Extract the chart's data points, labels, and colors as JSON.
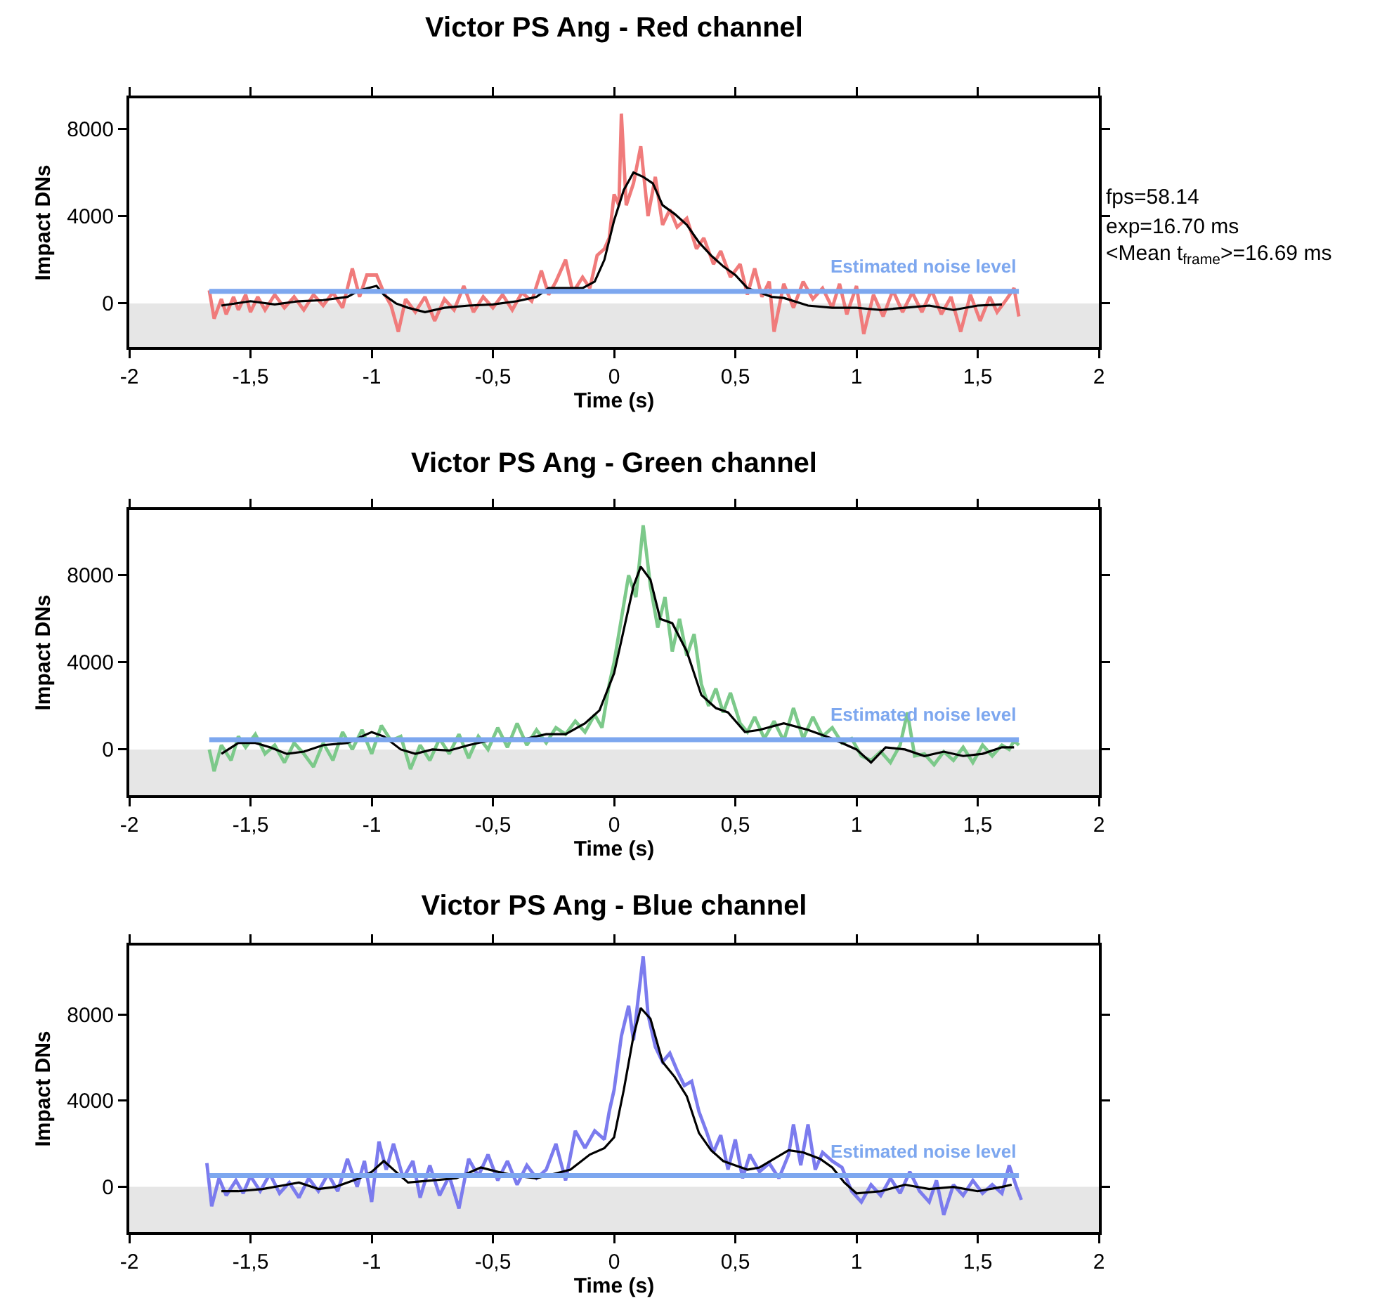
{
  "chart_data": [
    {
      "type": "line",
      "title": "Victor PS Ang - Red channel",
      "xlabel": "Time (s)",
      "ylabel": "Impact DNs",
      "xlim": [
        -2,
        2
      ],
      "xticks": [
        {
          "value": -2,
          "label": "-2"
        },
        {
          "value": -1.5,
          "label": "-1,5"
        },
        {
          "value": -1,
          "label": "-1"
        },
        {
          "value": -0.5,
          "label": "-0,5"
        },
        {
          "value": 0,
          "label": "0"
        },
        {
          "value": 0.5,
          "label": "0,5"
        },
        {
          "value": 1,
          "label": "1"
        },
        {
          "value": 1.5,
          "label": "1,5"
        },
        {
          "value": 2,
          "label": "2"
        }
      ],
      "ylim": [
        -2000,
        9400
      ],
      "yticks": [
        0,
        4000,
        8000
      ],
      "grid": false,
      "legend": false,
      "bands": [
        {
          "axis": "y",
          "from": -2000,
          "to": 0,
          "color": "#e6e6e6"
        }
      ],
      "annotations": [
        "fps=58.14",
        "exp=16.70 ms",
        "<Mean t$_{frame}$>=16.69 ms"
      ],
      "series": [
        {
          "color": "#f07b7b",
          "x": [
            -1.67,
            -1.65,
            -1.62,
            -1.6,
            -1.57,
            -1.55,
            -1.52,
            -1.5,
            -1.47,
            -1.44,
            -1.4,
            -1.36,
            -1.32,
            -1.28,
            -1.24,
            -1.2,
            -1.16,
            -1.12,
            -1.08,
            -1.05,
            -1.02,
            -0.98,
            -0.95,
            -0.92,
            -0.89,
            -0.86,
            -0.82,
            -0.78,
            -0.74,
            -0.7,
            -0.66,
            -0.62,
            -0.58,
            -0.54,
            -0.5,
            -0.46,
            -0.42,
            -0.38,
            -0.34,
            -0.3,
            -0.27,
            -0.24,
            -0.2,
            -0.17,
            -0.13,
            -0.1,
            -0.07,
            -0.04,
            -0.02,
            0,
            0.02,
            0.03,
            0.05,
            0.08,
            0.11,
            0.14,
            0.17,
            0.2,
            0.23,
            0.26,
            0.3,
            0.34,
            0.37,
            0.41,
            0.44,
            0.48,
            0.52,
            0.55,
            0.58,
            0.61,
            0.64,
            0.66,
            0.7,
            0.74,
            0.78,
            0.82,
            0.86,
            0.9,
            0.93,
            0.96,
            1,
            1.03,
            1.07,
            1.11,
            1.15,
            1.19,
            1.23,
            1.27,
            1.31,
            1.35,
            1.39,
            1.43,
            1.47,
            1.51,
            1.55,
            1.58,
            1.62,
            1.65,
            1.67
          ],
          "values": [
            600,
            -700,
            200,
            -500,
            300,
            -300,
            400,
            -400,
            300,
            -300,
            400,
            -200,
            300,
            -300,
            400,
            -100,
            500,
            -200,
            1600,
            300,
            1300,
            1300,
            500,
            -100,
            -1300,
            200,
            -400,
            300,
            -800,
            200,
            -300,
            800,
            -400,
            300,
            -200,
            400,
            -300,
            500,
            100,
            1500,
            400,
            1000,
            2000,
            500,
            1200,
            700,
            2200,
            2500,
            3000,
            5000,
            4500,
            8700,
            4500,
            5500,
            7200,
            4000,
            5800,
            3600,
            4300,
            3500,
            3900,
            2500,
            3000,
            1800,
            2400,
            1200,
            1800,
            400,
            1600,
            300,
            1000,
            -1300,
            900,
            -200,
            1000,
            200,
            700,
            -200,
            900,
            -500,
            800,
            -1400,
            400,
            -600,
            600,
            -400,
            500,
            -400,
            600,
            -500,
            300,
            -1300,
            400,
            -800,
            300,
            -400,
            200,
            700,
            -600
          ]
        },
        {
          "color": "#000000",
          "x": [
            -1.62,
            -1.5,
            -1.4,
            -1.3,
            -1.2,
            -1.1,
            -1.05,
            -0.98,
            -0.95,
            -0.9,
            -0.85,
            -0.78,
            -0.7,
            -0.6,
            -0.5,
            -0.4,
            -0.32,
            -0.27,
            -0.2,
            -0.13,
            -0.08,
            -0.04,
            0,
            0.04,
            0.08,
            0.12,
            0.16,
            0.2,
            0.25,
            0.3,
            0.35,
            0.4,
            0.45,
            0.5,
            0.55,
            0.6,
            0.65,
            0.7,
            0.8,
            0.9,
            1,
            1.1,
            1.2,
            1.3,
            1.4,
            1.5,
            1.6
          ],
          "values": [
            -100,
            100,
            -50,
            100,
            150,
            300,
            600,
            800,
            400,
            0,
            -200,
            -400,
            -200,
            -100,
            -50,
            100,
            300,
            700,
            700,
            700,
            1000,
            2000,
            3800,
            5200,
            6000,
            5800,
            5500,
            4500,
            4100,
            3600,
            2800,
            2200,
            1700,
            1300,
            700,
            500,
            300,
            250,
            -100,
            -200,
            -200,
            -300,
            -200,
            -100,
            -300,
            -100,
            -50
          ]
        },
        {
          "name": "Estimated noise level",
          "color": "#7da7ef",
          "x": [
            -1.67,
            1.67
          ],
          "values": [
            550,
            550
          ]
        }
      ]
    },
    {
      "type": "line",
      "title": "Victor PS Ang - Green channel",
      "xlabel": "Time (s)",
      "ylabel": "Impact DNs",
      "xlim": [
        -2,
        2
      ],
      "xticks": [
        {
          "value": -2,
          "label": "-2"
        },
        {
          "value": -1.5,
          "label": "-1,5"
        },
        {
          "value": -1,
          "label": "-1"
        },
        {
          "value": -0.5,
          "label": "-0,5"
        },
        {
          "value": 0,
          "label": "0"
        },
        {
          "value": 0.5,
          "label": "0,5"
        },
        {
          "value": 1,
          "label": "1"
        },
        {
          "value": 1.5,
          "label": "1,5"
        },
        {
          "value": 2,
          "label": "2"
        }
      ],
      "ylim": [
        -2100,
        11000
      ],
      "yticks": [
        0,
        4000,
        8000
      ],
      "grid": false,
      "legend": false,
      "bands": [
        {
          "axis": "y",
          "from": -2100,
          "to": 0,
          "color": "#e6e6e6"
        }
      ],
      "series": [
        {
          "color": "#7cc98a",
          "x": [
            -1.67,
            -1.65,
            -1.62,
            -1.58,
            -1.55,
            -1.52,
            -1.48,
            -1.44,
            -1.4,
            -1.36,
            -1.32,
            -1.28,
            -1.24,
            -1.2,
            -1.16,
            -1.12,
            -1.08,
            -1.04,
            -1,
            -0.96,
            -0.92,
            -0.88,
            -0.84,
            -0.8,
            -0.76,
            -0.72,
            -0.68,
            -0.64,
            -0.6,
            -0.56,
            -0.52,
            -0.48,
            -0.44,
            -0.4,
            -0.36,
            -0.32,
            -0.28,
            -0.24,
            -0.2,
            -0.16,
            -0.12,
            -0.08,
            -0.05,
            -0.02,
            0,
            0.03,
            0.06,
            0.09,
            0.12,
            0.15,
            0.18,
            0.21,
            0.24,
            0.27,
            0.3,
            0.33,
            0.36,
            0.39,
            0.42,
            0.45,
            0.48,
            0.52,
            0.55,
            0.58,
            0.62,
            0.66,
            0.7,
            0.74,
            0.78,
            0.82,
            0.86,
            0.9,
            0.94,
            0.98,
            1.02,
            1.06,
            1.1,
            1.14,
            1.18,
            1.21,
            1.24,
            1.28,
            1.32,
            1.36,
            1.4,
            1.44,
            1.48,
            1.52,
            1.56,
            1.6,
            1.63,
            1.65,
            1.67
          ],
          "values": [
            0,
            -1000,
            200,
            -500,
            600,
            100,
            700,
            -200,
            200,
            -600,
            300,
            -200,
            -800,
            300,
            -500,
            800,
            0,
            900,
            -200,
            1100,
            400,
            600,
            -900,
            200,
            -500,
            500,
            -200,
            700,
            -400,
            600,
            0,
            1000,
            100,
            1200,
            200,
            900,
            300,
            1000,
            700,
            1300,
            800,
            1600,
            1000,
            3000,
            4000,
            6000,
            8000,
            7000,
            10300,
            7500,
            5600,
            7000,
            4500,
            6000,
            4300,
            5300,
            3000,
            2000,
            2800,
            1700,
            2600,
            1200,
            800,
            1500,
            500,
            1300,
            400,
            1900,
            500,
            1500,
            600,
            1000,
            300,
            500,
            -300,
            -500,
            -100,
            -600,
            200,
            1700,
            -300,
            -200,
            -700,
            -100,
            -500,
            100,
            -600,
            200,
            -300,
            200,
            0,
            400,
            200
          ]
        },
        {
          "color": "#000000",
          "x": [
            -1.62,
            -1.55,
            -1.48,
            -1.42,
            -1.35,
            -1.28,
            -1.2,
            -1.1,
            -1,
            -0.95,
            -0.88,
            -0.82,
            -0.75,
            -0.68,
            -0.6,
            -0.52,
            -0.45,
            -0.36,
            -0.28,
            -0.2,
            -0.12,
            -0.06,
            0,
            0.04,
            0.08,
            0.11,
            0.15,
            0.19,
            0.24,
            0.3,
            0.36,
            0.42,
            0.47,
            0.54,
            0.6,
            0.7,
            0.8,
            0.9,
            1,
            1.06,
            1.12,
            1.2,
            1.28,
            1.36,
            1.44,
            1.52,
            1.6,
            1.65
          ],
          "values": [
            -200,
            300,
            300,
            100,
            -200,
            -100,
            200,
            300,
            800,
            600,
            0,
            -200,
            0,
            -50,
            200,
            400,
            500,
            500,
            700,
            700,
            1200,
            1800,
            3500,
            5500,
            7500,
            8400,
            7800,
            6000,
            5800,
            4500,
            2500,
            1900,
            1700,
            800,
            900,
            1200,
            900,
            500,
            0,
            -600,
            100,
            0,
            -300,
            -100,
            -300,
            -200,
            100,
            100
          ]
        },
        {
          "name": "Estimated noise level",
          "color": "#7da7ef",
          "x": [
            -1.67,
            1.67
          ],
          "values": [
            450,
            450
          ]
        }
      ]
    },
    {
      "type": "line",
      "title": "Victor PS Ang - Blue channel",
      "xlabel": "Time (s)",
      "ylabel": "Impact DNs",
      "xlim": [
        -2,
        2
      ],
      "xticks": [
        {
          "value": -2,
          "label": "-2"
        },
        {
          "value": -1.5,
          "label": "-1,5"
        },
        {
          "value": -1,
          "label": "-1"
        },
        {
          "value": -0.5,
          "label": "-0,5"
        },
        {
          "value": 0,
          "label": "0"
        },
        {
          "value": 0.5,
          "label": "0,5"
        },
        {
          "value": 1,
          "label": "1"
        },
        {
          "value": 1.5,
          "label": "1,5"
        },
        {
          "value": 2,
          "label": "2"
        }
      ],
      "ylim": [
        -2100,
        11200
      ],
      "yticks": [
        0,
        4000,
        8000
      ],
      "grid": false,
      "legend": false,
      "bands": [
        {
          "axis": "y",
          "from": -2100,
          "to": 0,
          "color": "#e6e6e6"
        }
      ],
      "series": [
        {
          "color": "#7b7bee",
          "x": [
            -1.68,
            -1.66,
            -1.63,
            -1.6,
            -1.56,
            -1.53,
            -1.5,
            -1.46,
            -1.42,
            -1.38,
            -1.34,
            -1.3,
            -1.26,
            -1.22,
            -1.18,
            -1.14,
            -1.1,
            -1.06,
            -1.03,
            -1,
            -0.97,
            -0.94,
            -0.91,
            -0.87,
            -0.83,
            -0.8,
            -0.76,
            -0.72,
            -0.68,
            -0.64,
            -0.6,
            -0.56,
            -0.52,
            -0.48,
            -0.44,
            -0.4,
            -0.36,
            -0.32,
            -0.28,
            -0.24,
            -0.2,
            -0.16,
            -0.12,
            -0.08,
            -0.04,
            -0.02,
            0,
            0.03,
            0.06,
            0.08,
            0.1,
            0.12,
            0.14,
            0.17,
            0.2,
            0.23,
            0.26,
            0.29,
            0.32,
            0.35,
            0.38,
            0.41,
            0.44,
            0.47,
            0.5,
            0.53,
            0.56,
            0.6,
            0.64,
            0.68,
            0.72,
            0.74,
            0.77,
            0.8,
            0.83,
            0.86,
            0.9,
            0.94,
            0.98,
            1.02,
            1.06,
            1.1,
            1.14,
            1.18,
            1.22,
            1.26,
            1.3,
            1.33,
            1.36,
            1.4,
            1.44,
            1.48,
            1.52,
            1.56,
            1.6,
            1.63,
            1.66,
            1.68
          ],
          "values": [
            1100,
            -900,
            400,
            -400,
            300,
            -300,
            500,
            -200,
            600,
            -300,
            200,
            -500,
            400,
            -200,
            600,
            -200,
            1300,
            0,
            1200,
            -700,
            2100,
            800,
            2000,
            400,
            1200,
            -500,
            1000,
            -400,
            500,
            -1000,
            1300,
            500,
            1500,
            300,
            1200,
            100,
            1000,
            400,
            800,
            2000,
            300,
            2600,
            1800,
            2600,
            2200,
            3500,
            4500,
            7000,
            8400,
            6800,
            8800,
            10700,
            8000,
            6500,
            5800,
            6200,
            5400,
            4700,
            4900,
            3500,
            2600,
            1600,
            2400,
            800,
            2200,
            400,
            1500,
            700,
            1100,
            400,
            1500,
            2900,
            1000,
            2900,
            800,
            1600,
            1200,
            900,
            -200,
            -700,
            100,
            -400,
            400,
            -300,
            700,
            -200,
            -700,
            300,
            -1300,
            100,
            -400,
            300,
            -300,
            100,
            -300,
            1000,
            0,
            -600
          ]
        },
        {
          "color": "#000000",
          "x": [
            -1.62,
            -1.55,
            -1.45,
            -1.35,
            -1.3,
            -1.22,
            -1.15,
            -1.05,
            -1,
            -0.95,
            -0.9,
            -0.85,
            -0.75,
            -0.65,
            -0.55,
            -0.48,
            -0.4,
            -0.32,
            -0.25,
            -0.18,
            -0.1,
            -0.04,
            0,
            0.04,
            0.08,
            0.11,
            0.15,
            0.2,
            0.25,
            0.3,
            0.35,
            0.4,
            0.45,
            0.5,
            0.55,
            0.6,
            0.66,
            0.72,
            0.78,
            0.85,
            0.9,
            0.95,
            1,
            1.1,
            1.2,
            1.3,
            1.4,
            1.5,
            1.6,
            1.64
          ],
          "values": [
            -200,
            -200,
            -100,
            100,
            200,
            -100,
            0,
            400,
            700,
            1200,
            700,
            200,
            300,
            400,
            900,
            700,
            500,
            400,
            600,
            800,
            1500,
            1800,
            2300,
            4500,
            7000,
            8300,
            7800,
            5800,
            5100,
            4200,
            2500,
            1700,
            1200,
            1000,
            800,
            900,
            1300,
            1700,
            1600,
            1300,
            900,
            200,
            -300,
            -200,
            100,
            -100,
            0,
            -200,
            0,
            100
          ]
        },
        {
          "name": "Estimated noise level",
          "color": "#7da7ef",
          "x": [
            -1.67,
            1.67
          ],
          "values": [
            520,
            520
          ]
        }
      ]
    }
  ]
}
